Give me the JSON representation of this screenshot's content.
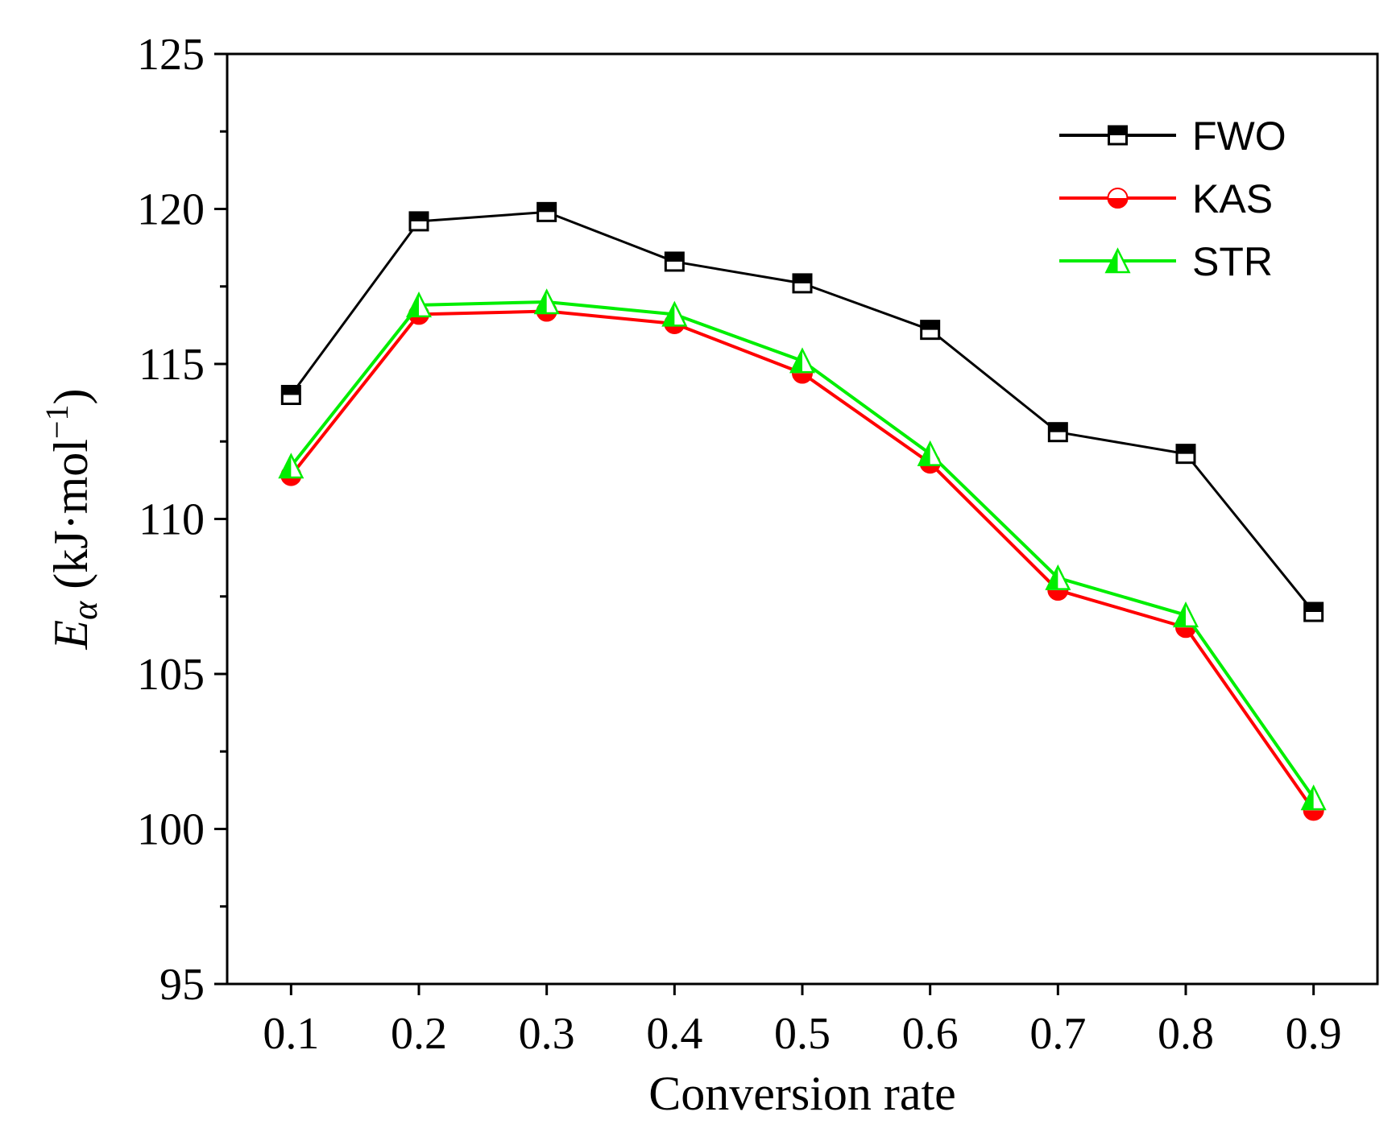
{
  "chart_data": {
    "type": "line",
    "title": "",
    "xlabel": "Conversion rate",
    "ylabel": {
      "symbol": "E",
      "subscript": "α",
      "units_prefix": "(kJ·mol",
      "exponent": "−1",
      "units_suffix": ")"
    },
    "xlim": [
      0.05,
      0.95
    ],
    "ylim": [
      95,
      125
    ],
    "x": [
      0.1,
      0.2,
      0.3,
      0.4,
      0.5,
      0.6,
      0.7,
      0.8,
      0.9
    ],
    "x_tick_labels": [
      "0.1",
      "0.2",
      "0.3",
      "0.4",
      "0.5",
      "0.6",
      "0.7",
      "0.8",
      "0.9"
    ],
    "y_ticks": [
      95,
      100,
      105,
      110,
      115,
      120,
      125
    ],
    "y_tick_labels": [
      "95",
      "100",
      "105",
      "110",
      "115",
      "120",
      "125"
    ],
    "y_minor_ticks": [
      97.5,
      102.5,
      107.5,
      112.5,
      117.5,
      122.5
    ],
    "grid": false,
    "legend_position": "top-right",
    "series": [
      {
        "name": "FWO",
        "color": "#000000",
        "marker": "half-filled-square",
        "values": [
          114.0,
          119.6,
          119.9,
          118.3,
          117.6,
          116.1,
          112.8,
          112.1,
          107.0
        ]
      },
      {
        "name": "KAS",
        "color": "#ff0000",
        "marker": "half-filled-circle",
        "values": [
          111.4,
          116.6,
          116.7,
          116.3,
          114.7,
          111.8,
          107.7,
          106.5,
          100.6
        ]
      },
      {
        "name": "STR",
        "color": "#00ee00",
        "marker": "half-filled-triangle",
        "values": [
          111.7,
          116.9,
          117.0,
          116.6,
          115.1,
          112.1,
          108.1,
          106.9,
          101.0
        ]
      }
    ]
  }
}
